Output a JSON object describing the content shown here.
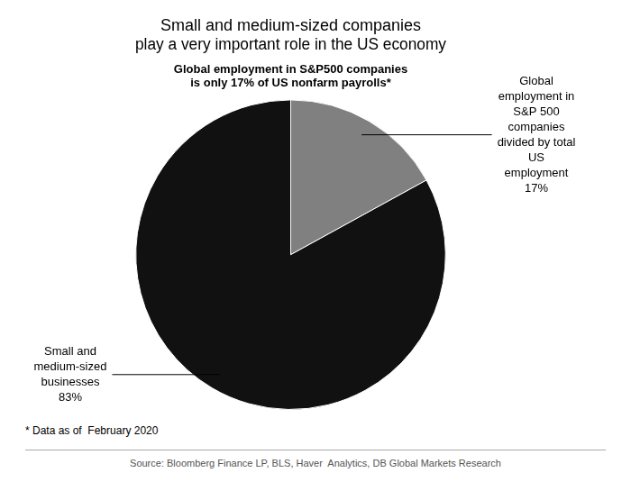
{
  "chart_data": {
    "type": "pie",
    "title": [
      "Small and medium-sized companies",
      "play a very important role in the US economy"
    ],
    "subtitle": [
      "Global employment in S&P500 companies",
      "is only 17% of US nonfarm payrolls*"
    ],
    "categories": [
      "Global\nemployment in\nS&P 500\ncompanies\ndivided by total\nUS\nemployment\n17%",
      "Small and\nmedium-sized\nbusinesses\n83%"
    ],
    "values": [
      17,
      83
    ],
    "colors": [
      "#808080",
      "#111111"
    ],
    "annotations": [
      "* Data as of  February 2020",
      "Source: Bloomberg Finance LP, BLS, Haver  Analytics, DB Global Markets Research"
    ]
  }
}
